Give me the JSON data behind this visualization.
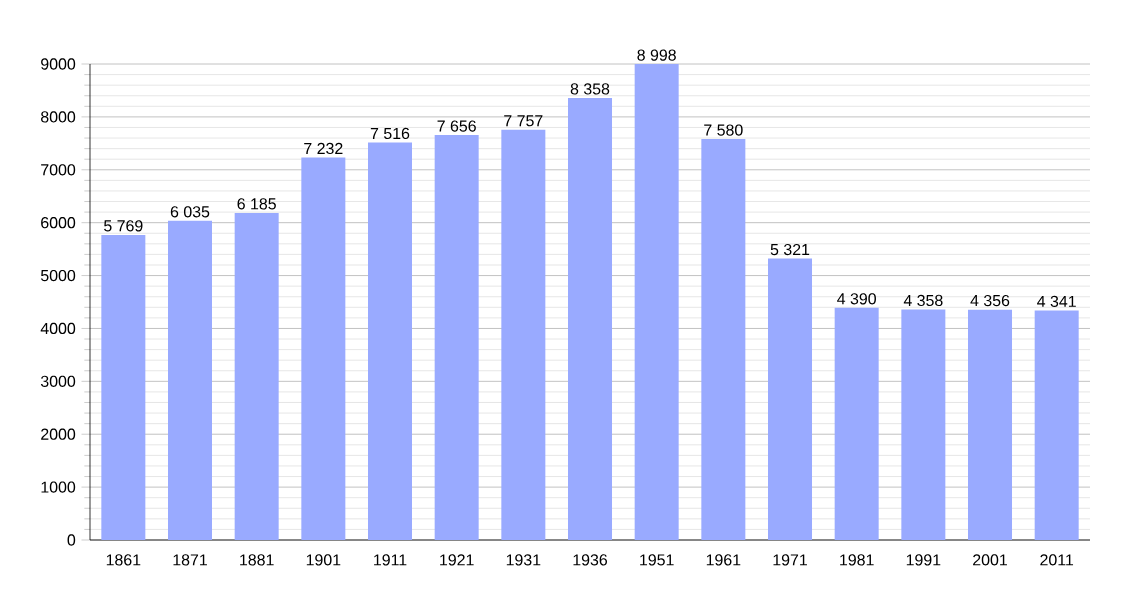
{
  "chart_data": {
    "type": "bar",
    "categories": [
      "1861",
      "1871",
      "1881",
      "1901",
      "1911",
      "1921",
      "1931",
      "1936",
      "1951",
      "1961",
      "1971",
      "1981",
      "1991",
      "2001",
      "2011"
    ],
    "values": [
      5769,
      6035,
      6185,
      7232,
      7516,
      7656,
      7757,
      8358,
      8998,
      7580,
      5321,
      4390,
      4358,
      4356,
      4341
    ],
    "value_labels": [
      "5 769",
      "6 035",
      "6 185",
      "7 232",
      "7 516",
      "7 656",
      "7 757",
      "8 358",
      "8 998",
      "7 580",
      "5 321",
      "4 390",
      "4 358",
      "4 356",
      "4 341"
    ],
    "color": "#99aaff",
    "ylim": [
      0,
      9000
    ],
    "yticks": [
      0,
      1000,
      2000,
      3000,
      4000,
      5000,
      6000,
      7000,
      8000,
      9000
    ],
    "grid": "y"
  }
}
